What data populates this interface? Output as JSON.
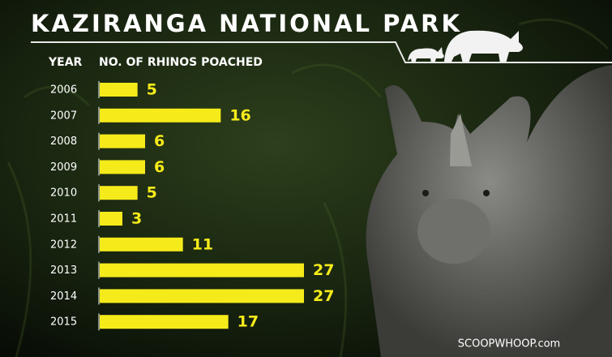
{
  "chart_data": {
    "type": "bar",
    "orientation": "horizontal",
    "title": "KAZIRANGA NATIONAL PARK",
    "category_header": "YEAR",
    "value_header": "NO. OF RHINOS POACHED",
    "categories": [
      "2006",
      "2007",
      "2008",
      "2009",
      "2010",
      "2011",
      "2012",
      "2013",
      "2014",
      "2015"
    ],
    "values": [
      5,
      16,
      6,
      6,
      5,
      3,
      11,
      27,
      27,
      17
    ],
    "color": "#f5eb1a",
    "watermark": "SCOOPWHOOP.com"
  }
}
